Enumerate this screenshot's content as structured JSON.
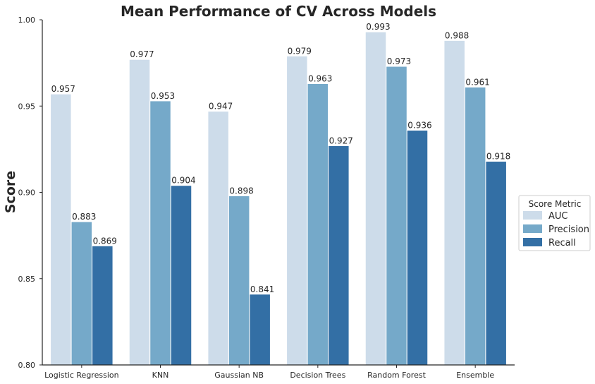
{
  "chart_data": {
    "type": "bar",
    "title": "Mean Performance of CV Across Models",
    "xlabel": "",
    "ylabel": "Score",
    "ylim": [
      0.8,
      1.0
    ],
    "yticks": [
      "0.80",
      "0.85",
      "0.90",
      "0.95",
      "1.00"
    ],
    "grid": false,
    "legend_title": "Score Metric",
    "legend_position": "center-right",
    "categories": [
      "Logistic Regression",
      "KNN",
      "Gaussian NB",
      "Decision Trees",
      "Random Forest",
      "Ensemble"
    ],
    "series": [
      {
        "name": "AUC",
        "color": "#cddcea",
        "values": [
          0.957,
          0.977,
          0.947,
          0.979,
          0.993,
          0.988
        ]
      },
      {
        "name": "Precision",
        "color": "#75a9c9",
        "values": [
          0.883,
          0.953,
          0.898,
          0.963,
          0.973,
          0.961
        ]
      },
      {
        "name": "Recall",
        "color": "#336fa5",
        "values": [
          0.869,
          0.904,
          0.841,
          0.927,
          0.936,
          0.918
        ]
      }
    ]
  }
}
